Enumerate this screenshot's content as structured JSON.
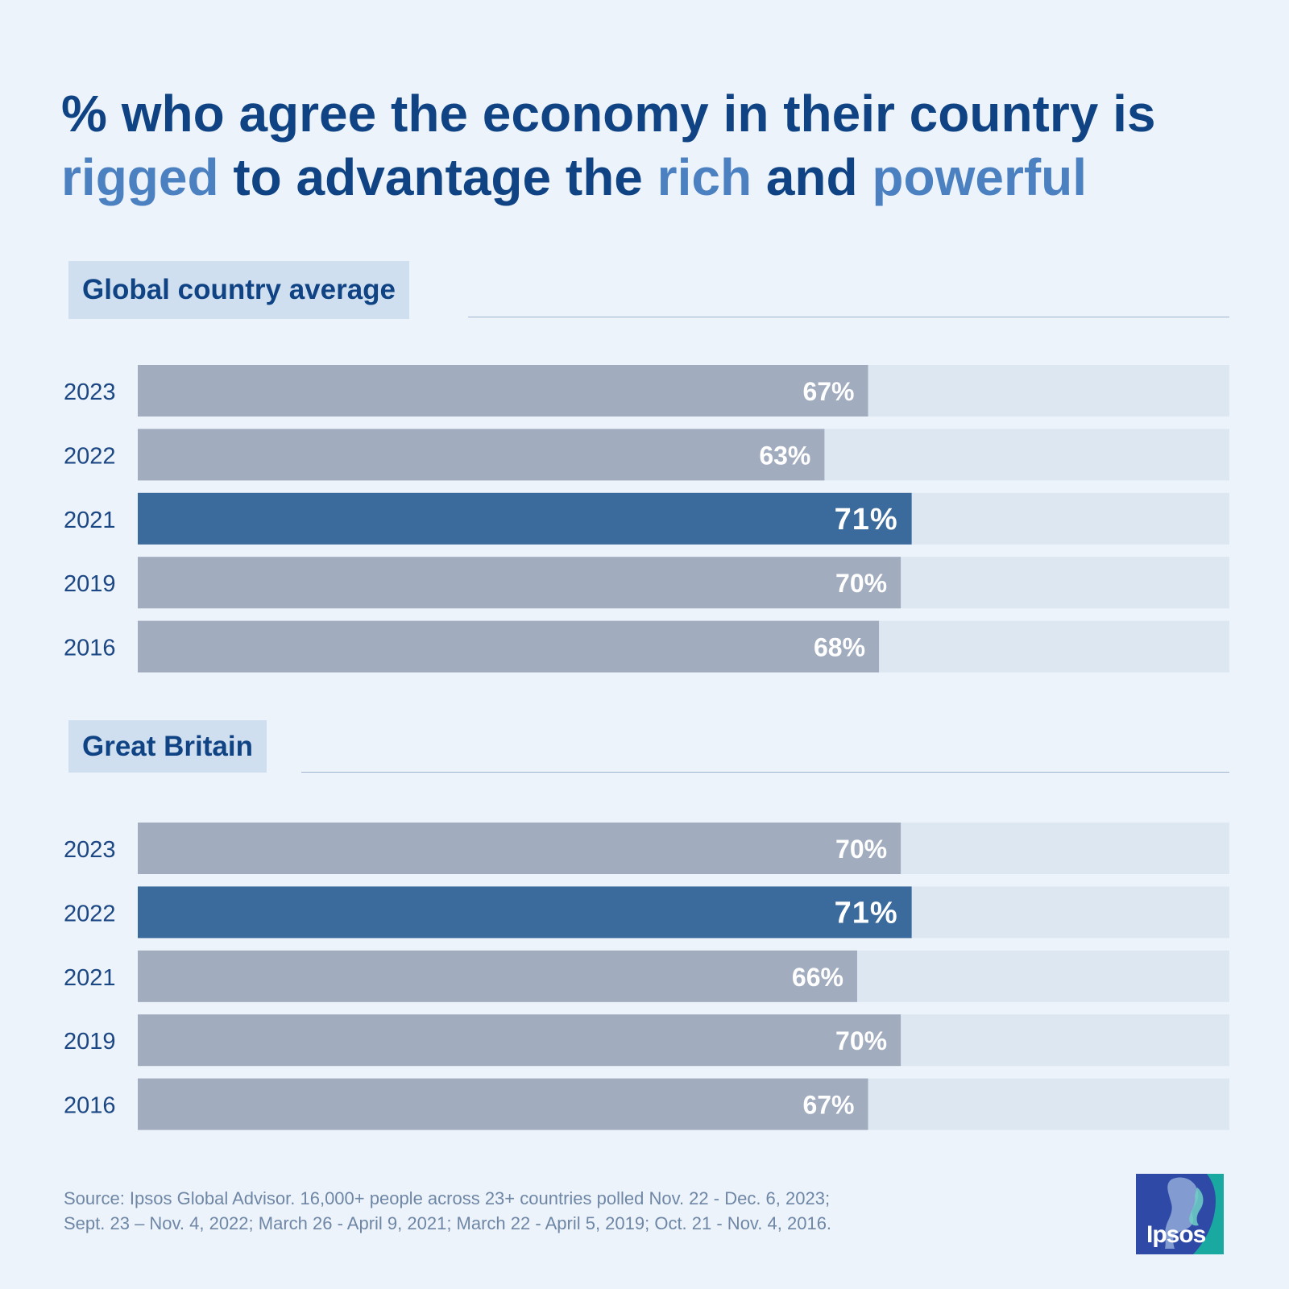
{
  "title": {
    "part1": "% who agree the economy in their country is",
    "part2": "rigged",
    "part3": " to advantage the ",
    "part4": "rich",
    "part5": " and ",
    "part6": "powerful",
    "color": "#0f4383",
    "highlight_color": "#4b80c1"
  },
  "chart_data": [
    {
      "type": "bar",
      "title": "Global country average",
      "categories": [
        "2023",
        "2022",
        "2021",
        "2019",
        "2016"
      ],
      "values": [
        67,
        63,
        71,
        70,
        68
      ],
      "value_labels": [
        "67%",
        "63%",
        "71%",
        "70%",
        "68%"
      ],
      "highlight_index": 2,
      "xlim": [
        0,
        100
      ],
      "grid": false,
      "orientation": "horizontal"
    },
    {
      "type": "bar",
      "title": "Great Britain",
      "categories": [
        "2023",
        "2022",
        "2021",
        "2019",
        "2016"
      ],
      "values": [
        70,
        71,
        66,
        70,
        67
      ],
      "value_labels": [
        "70%",
        "71%",
        "66%",
        "70%",
        "67%"
      ],
      "highlight_index": 1,
      "xlim": [
        0,
        100
      ],
      "grid": false,
      "orientation": "horizontal"
    }
  ],
  "colors": {
    "background": "#edf3fa",
    "bar": "#a1acbf",
    "bar_highlight": "#3b6a9d",
    "track": "#dde7f1",
    "tag_background": "#d0dff0"
  },
  "source": {
    "line1": "Source: Ipsos Global Advisor. 16,000+ people across 23+ countries polled Nov. 22 - Dec. 6, 2023;",
    "line2": "Sept. 23 – Nov. 4, 2022; March 26 - April 9, 2021; March 22 - April 5, 2019; Oct. 21 - Nov. 4, 2016."
  },
  "logo": {
    "text": "Ipsos",
    "icon": "ipsos-logo-icon"
  }
}
